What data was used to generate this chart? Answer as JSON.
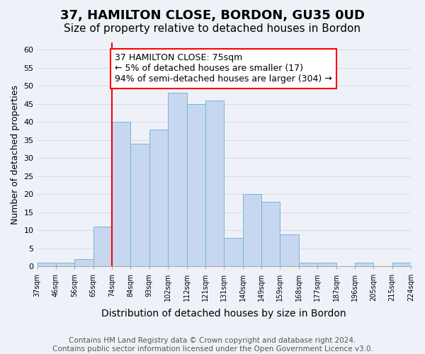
{
  "title": "37, HAMILTON CLOSE, BORDON, GU35 0UD",
  "subtitle": "Size of property relative to detached houses in Bordon",
  "xlabel": "Distribution of detached houses by size in Bordon",
  "ylabel": "Number of detached properties",
  "bin_labels": [
    "37sqm",
    "46sqm",
    "56sqm",
    "65sqm",
    "74sqm",
    "84sqm",
    "93sqm",
    "102sqm",
    "112sqm",
    "121sqm",
    "131sqm",
    "140sqm",
    "149sqm",
    "159sqm",
    "168sqm",
    "177sqm",
    "187sqm",
    "196sqm",
    "205sqm",
    "215sqm",
    "224sqm"
  ],
  "bar_heights": [
    1,
    1,
    2,
    11,
    40,
    34,
    38,
    48,
    45,
    46,
    8,
    20,
    18,
    9,
    1,
    1,
    0,
    1,
    0,
    1
  ],
  "bar_color": "#c5d8f0",
  "bar_edge_color": "#7ab3d9",
  "vline_x": 4,
  "vline_color": "red",
  "annotation_text": "37 HAMILTON CLOSE: 75sqm\n← 5% of detached houses are smaller (17)\n94% of semi-detached houses are larger (304) →",
  "annotation_box_edge_color": "red",
  "ylim": [
    0,
    62
  ],
  "yticks": [
    0,
    5,
    10,
    15,
    20,
    25,
    30,
    35,
    40,
    45,
    50,
    55,
    60
  ],
  "footnote": "Contains HM Land Registry data © Crown copyright and database right 2024.\nContains public sector information licensed under the Open Government Licence v3.0.",
  "title_fontsize": 13,
  "subtitle_fontsize": 11,
  "xlabel_fontsize": 10,
  "ylabel_fontsize": 9,
  "annotation_fontsize": 9,
  "footnote_fontsize": 7.5,
  "grid_color": "#d8dde8",
  "background_color": "#eef2f8"
}
